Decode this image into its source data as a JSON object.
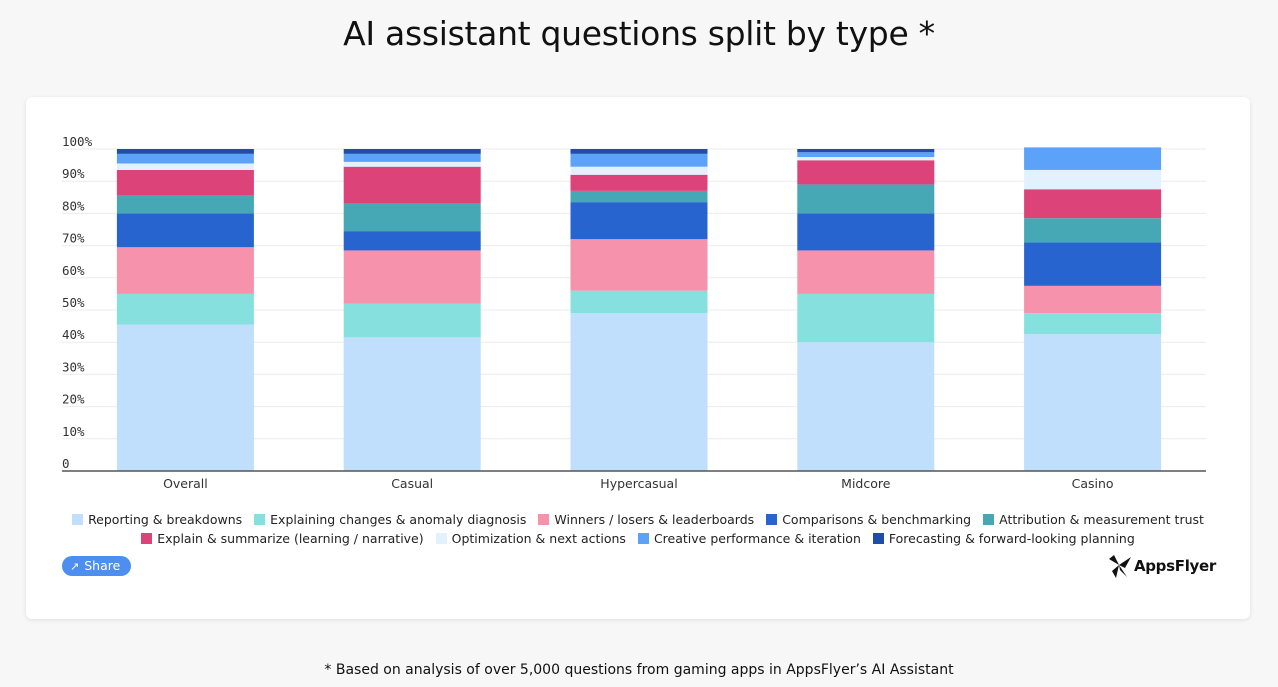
{
  "title": "AI assistant questions split by type *",
  "footnote": "* Based on analysis of over 5,000 questions from gaming apps in AppsFlyer’s AI Assistant",
  "share_label": "Share",
  "brand_name": "AppsFlyer",
  "chart_data": {
    "type": "bar",
    "stacked": true,
    "categories": [
      "Overall",
      "Casual",
      "Hypercasual",
      "Midcore",
      "Casino"
    ],
    "y_ticks": [
      "0",
      "10%",
      "20%",
      "30%",
      "40%",
      "50%",
      "60%",
      "70%",
      "80%",
      "90%",
      "100%"
    ],
    "ylim": [
      0,
      100
    ],
    "grid": true,
    "legend_position": "bottom",
    "series": [
      {
        "name": "Reporting & breakdowns",
        "color": "#bfdffc",
        "values": [
          45.5,
          41.5,
          49,
          40,
          42.5
        ]
      },
      {
        "name": "Explaining changes & anomaly diagnosis",
        "color": "#86e1de",
        "values": [
          9.5,
          10.5,
          7,
          15,
          6.5
        ]
      },
      {
        "name": "Winners / losers & leaderboards",
        "color": "#f692ab",
        "values": [
          14.5,
          16.5,
          16,
          13.5,
          8.5
        ]
      },
      {
        "name": "Comparisons & benchmarking",
        "color": "#2864d0",
        "values": [
          10.5,
          6,
          11.5,
          11.5,
          13.5
        ]
      },
      {
        "name": "Attribution & measurement trust",
        "color": "#45a8b4",
        "values": [
          5.5,
          8.5,
          3.5,
          9,
          7.5
        ]
      },
      {
        "name": "Explain & summarize (learning / narrative)",
        "color": "#dc4379",
        "values": [
          8,
          11.5,
          5,
          7.5,
          9
        ]
      },
      {
        "name": "Optimization & next actions",
        "color": "#e3f1fe",
        "values": [
          2,
          1.5,
          2.5,
          1,
          6
        ]
      },
      {
        "name": "Creative performance & iteration",
        "color": "#5ca2f8",
        "values": [
          3,
          2.5,
          4,
          1.5,
          7
        ]
      },
      {
        "name": "Forecasting & forward-looking planning",
        "color": "#1f4ea8",
        "values": [
          1.5,
          1.5,
          1.5,
          1,
          0
        ]
      }
    ]
  }
}
